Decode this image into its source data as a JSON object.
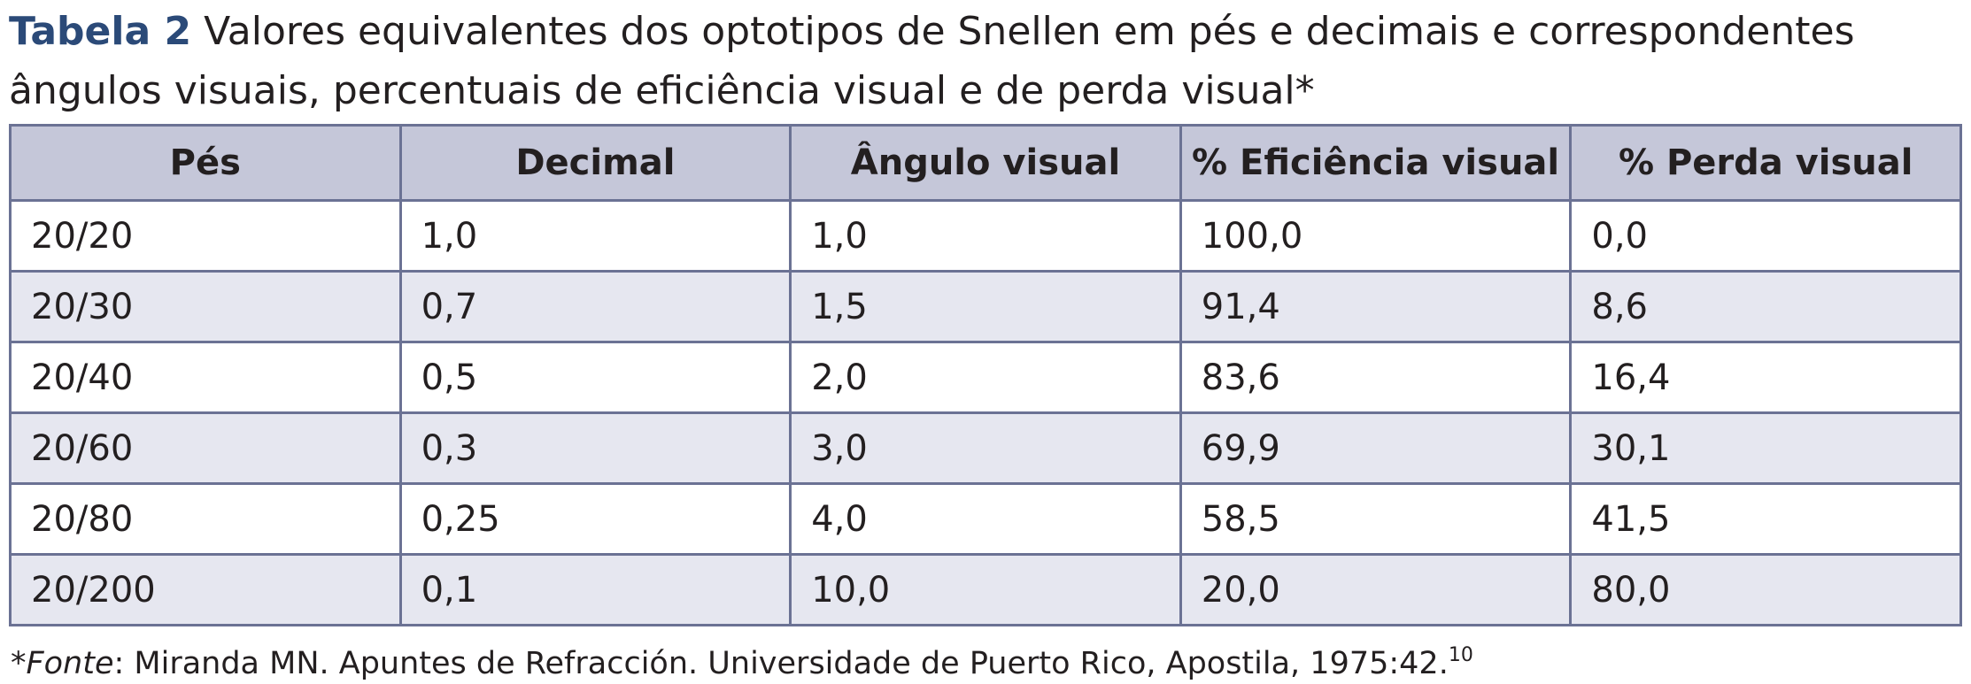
{
  "caption": {
    "label": "Tabela 2",
    "title": "Valores equivalentes dos optotipos de Snellen em pés e decimais e correspondentes ângulos visuais, percentuais de eficiência visual e de perda visual*"
  },
  "table": {
    "headers": [
      "Pés",
      "Decimal",
      "Ângulo visual",
      "% Eficiência visual",
      "% Perda visual"
    ],
    "rows": [
      [
        "20/20",
        "1,0",
        "1,0",
        "100,0",
        "0,0"
      ],
      [
        "20/30",
        "0,7",
        "1,5",
        "91,4",
        "8,6"
      ],
      [
        "20/40",
        "0,5",
        "2,0",
        "83,6",
        "16,4"
      ],
      [
        "20/60",
        "0,3",
        "3,0",
        "69,9",
        "30,1"
      ],
      [
        "20/80",
        "0,25",
        "4,0",
        "58,5",
        "41,5"
      ],
      [
        "20/200",
        "0,1",
        "10,0",
        "20,0",
        "80,0"
      ]
    ]
  },
  "footnote": {
    "marker": "*",
    "source_label": "Fonte",
    "text": ": Miranda MN. Apuntes de Refracción. Universidade de Puerto Rico, Apostila, 1975:42.",
    "reference": "10"
  },
  "colors": {
    "label_blue": "#2b4a78",
    "header_bg": "#c5c7d9",
    "stripe_bg": "#e6e7f0",
    "border": "#6b7294"
  }
}
